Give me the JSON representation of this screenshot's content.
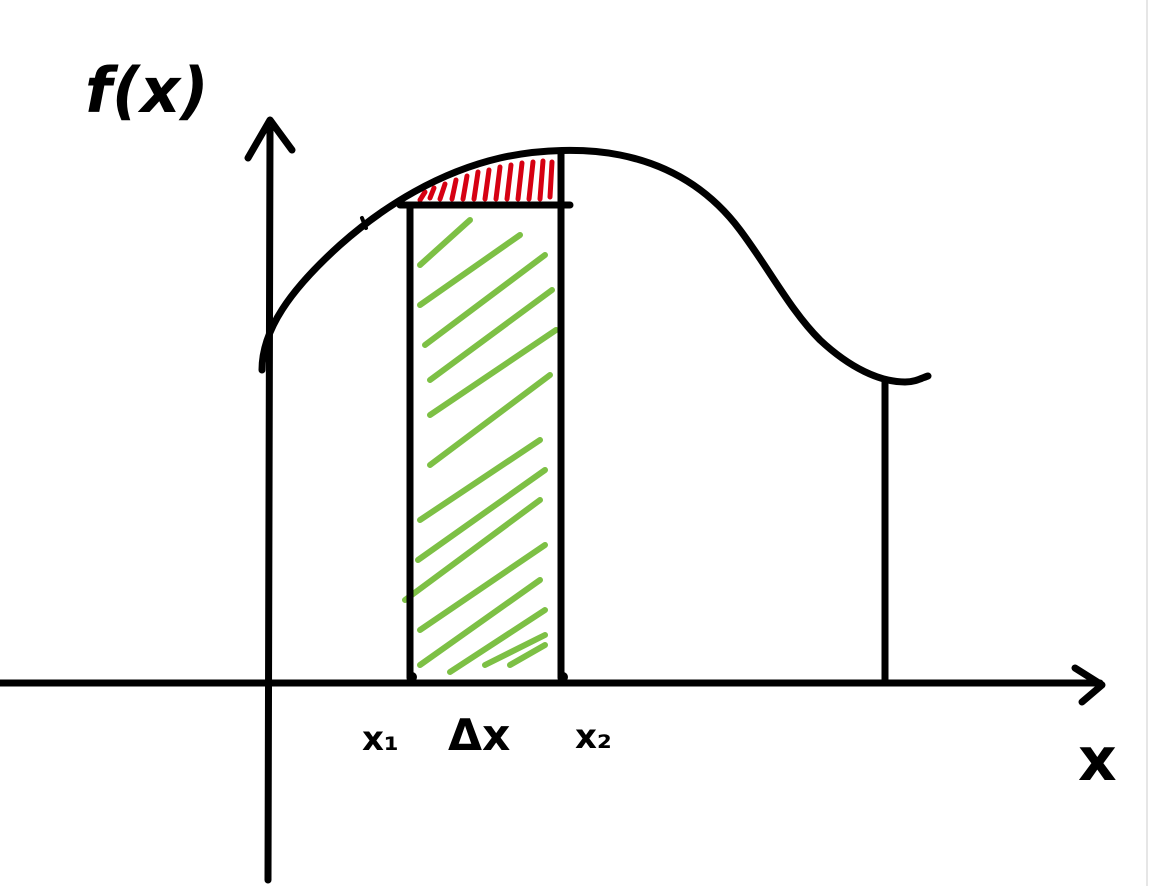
{
  "labels": {
    "y_axis": "f(x)",
    "x_axis": "x",
    "x1": "x₁",
    "delta": "Δx",
    "x2": "x₂"
  },
  "colors": {
    "ink": "#000000",
    "area_fill_hatch": "#7dc045",
    "error_hatch": "#d60012",
    "background": "#ffffff"
  }
}
